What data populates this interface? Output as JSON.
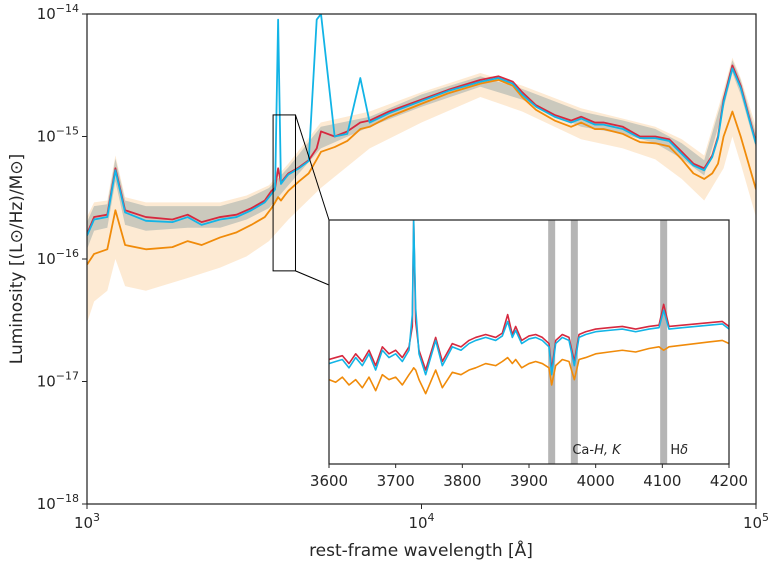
{
  "chart_data": {
    "type": "line",
    "xlabel": "rest-frame wavelength [Å]",
    "ylabel": "Luminosity [(L⊙/Hz)/M⊙]",
    "xscale": "log",
    "yscale": "log",
    "xlim": [
      1000,
      100000
    ],
    "ylim": [
      1e-18,
      1e-14
    ],
    "grid": false,
    "x_ticks": [
      {
        "value": 1000,
        "base": "10",
        "exp": "3"
      },
      {
        "value": 10000,
        "base": "10",
        "exp": "4"
      },
      {
        "value": 100000,
        "base": "10",
        "exp": "5"
      }
    ],
    "y_ticks": [
      {
        "value": 1e-18,
        "base": "10",
        "exp": "−18"
      },
      {
        "value": 1e-17,
        "base": "10",
        "exp": "−17"
      },
      {
        "value": 1e-16,
        "base": "10",
        "exp": "−16"
      },
      {
        "value": 1e-15,
        "base": "10",
        "exp": "−15"
      },
      {
        "value": 1e-14,
        "base": "10",
        "exp": "−14"
      }
    ],
    "colors": {
      "red": "#d6293f",
      "cyan": "#12b4e6",
      "orange": "#f08b0a",
      "gray_band": "#b9bdb5",
      "orange_band": "#fde5c8",
      "inset_bar": "#b5b5b5"
    },
    "series": [
      {
        "color": "red",
        "x": [
          1000,
          1050,
          1150,
          1216,
          1300,
          1500,
          1800,
          2000,
          2200,
          2500,
          2800,
          3100,
          3400,
          3560,
          3650,
          3727,
          3800,
          3900,
          4000,
          4300,
          4600,
          4861,
          5007,
          5500,
          6000,
          6563,
          7000,
          8000,
          10000,
          12000,
          15000,
          17000,
          18750,
          20000,
          22000,
          25000,
          28000,
          30000,
          33000,
          35000,
          40000,
          45000,
          50000,
          55000,
          60000,
          65000,
          70000,
          74000,
          77000,
          80000,
          85000,
          90000,
          95000,
          100000
        ],
        "y": [
          1.6e-16,
          2.2e-16,
          2.3e-16,
          5.5e-16,
          2.5e-16,
          2.2e-16,
          2.1e-16,
          2.3e-16,
          2e-16,
          2.2e-16,
          2.3e-16,
          2.6e-16,
          3e-16,
          3.6e-16,
          3.8e-16,
          5.5e-16,
          4.2e-16,
          4.6e-16,
          5e-16,
          5.6e-16,
          6.4e-16,
          8e-16,
          1.1e-15,
          1e-15,
          1.1e-15,
          1.3e-15,
          1.35e-15,
          1.6e-15,
          2e-15,
          2.4e-15,
          2.9e-15,
          3.1e-15,
          2.8e-15,
          2.3e-15,
          1.8e-15,
          1.5e-15,
          1.35e-15,
          1.45e-15,
          1.3e-15,
          1.3e-15,
          1.2e-15,
          1e-15,
          1e-15,
          9.5e-16,
          7.5e-16,
          6e-16,
          5.5e-16,
          7e-16,
          1e-15,
          2e-15,
          3.8e-15,
          2.6e-15,
          1.5e-15,
          9e-16
        ]
      },
      {
        "color": "cyan",
        "x": [
          1000,
          1050,
          1150,
          1216,
          1300,
          1500,
          1800,
          2000,
          2200,
          2500,
          2800,
          3100,
          3400,
          3560,
          3650,
          3727,
          3800,
          3900,
          4000,
          4300,
          4600,
          4861,
          5007,
          5500,
          6000,
          6563,
          7000,
          8000,
          10000,
          12000,
          15000,
          17000,
          18750,
          20000,
          22000,
          25000,
          28000,
          30000,
          33000,
          35000,
          40000,
          45000,
          50000,
          55000,
          60000,
          65000,
          70000,
          74000,
          77000,
          80000,
          85000,
          90000,
          95000,
          100000
        ],
        "y": [
          1.55e-16,
          2.1e-16,
          2.2e-16,
          5.3e-16,
          2.4e-16,
          2.05e-16,
          2e-16,
          2.2e-16,
          1.9e-16,
          2.1e-16,
          2.2e-16,
          2.5e-16,
          2.9e-16,
          3.4e-16,
          3.7e-16,
          9e-15,
          4.1e-16,
          4.5e-16,
          4.9e-16,
          5.5e-16,
          6.3e-16,
          9e-15,
          1e-14,
          1e-15,
          1.05e-15,
          3e-15,
          1.3e-15,
          1.55e-15,
          1.95e-15,
          2.35e-15,
          2.8e-15,
          3e-15,
          2.7e-15,
          2.2e-15,
          1.75e-15,
          1.45e-15,
          1.3e-15,
          1.4e-15,
          1.25e-15,
          1.25e-15,
          1.15e-15,
          9.7e-16,
          9.7e-16,
          9.2e-16,
          7.2e-16,
          5.8e-16,
          5.3e-16,
          6.8e-16,
          9.7e-16,
          1.9e-15,
          3.6e-15,
          2.5e-15,
          1.45e-15,
          8.7e-16
        ]
      },
      {
        "color": "orange",
        "x": [
          1000,
          1050,
          1150,
          1216,
          1300,
          1500,
          1800,
          2000,
          2200,
          2500,
          2800,
          3100,
          3400,
          3560,
          3650,
          3727,
          3800,
          3900,
          4000,
          4300,
          4600,
          4861,
          5007,
          5500,
          6000,
          6563,
          7000,
          8000,
          10000,
          12000,
          15000,
          17000,
          18750,
          20000,
          22000,
          25000,
          28000,
          30000,
          33000,
          35000,
          40000,
          45000,
          50000,
          55000,
          60000,
          65000,
          70000,
          74000,
          77000,
          80000,
          85000,
          90000,
          95000,
          100000
        ],
        "y": [
          9e-17,
          1.1e-16,
          1.2e-16,
          2.5e-16,
          1.3e-16,
          1.2e-16,
          1.25e-16,
          1.4e-16,
          1.3e-16,
          1.5e-16,
          1.65e-16,
          1.9e-16,
          2.2e-16,
          2.6e-16,
          2.9e-16,
          3.2e-16,
          3e-16,
          3.3e-16,
          3.6e-16,
          4.3e-16,
          5e-16,
          6.5e-16,
          7.5e-16,
          8.2e-16,
          9.2e-16,
          1.15e-15,
          1.2e-15,
          1.45e-15,
          1.85e-15,
          2.25e-15,
          2.7e-15,
          2.9e-15,
          2.6e-15,
          2.1e-15,
          1.65e-15,
          1.35e-15,
          1.2e-15,
          1.3e-15,
          1.15e-15,
          1.15e-15,
          1.05e-15,
          9e-16,
          8.8e-16,
          8.3e-16,
          6.5e-16,
          5e-16,
          4.5e-16,
          5e-16,
          6e-16,
          1e-15,
          1.6e-15,
          1e-15,
          6e-16,
          3.7e-16
        ]
      }
    ],
    "bands": [
      {
        "color": "orange_band",
        "x": [
          1000,
          1050,
          1150,
          1216,
          1300,
          1500,
          2000,
          2500,
          3000,
          3500,
          4000,
          5000,
          7000,
          10000,
          15000,
          20000,
          30000,
          40000,
          50000,
          60000,
          70000,
          80000,
          85000,
          90000,
          100000
        ],
        "low": [
          3e-17,
          4.5e-17,
          5.5e-17,
          1e-16,
          6e-17,
          5.5e-17,
          7e-17,
          8.5e-17,
          1.05e-16,
          1.4e-16,
          2.1e-16,
          3.8e-16,
          8e-16,
          1.3e-15,
          2.1e-15,
          1.6e-15,
          9.5e-16,
          8e-16,
          6.5e-16,
          4.5e-16,
          3e-16,
          5.5e-16,
          1e-15,
          6e-16,
          2.2e-16
        ],
        "high": [
          2.2e-16,
          2.9e-16,
          3e-16,
          7e-16,
          3.2e-16,
          2.9e-16,
          2.9e-16,
          2.9e-16,
          3.3e-16,
          4e-16,
          6e-16,
          1.3e-15,
          1.6e-15,
          2.3e-15,
          3.3e-15,
          2.6e-15,
          1.7e-15,
          1.4e-15,
          1.2e-15,
          9.5e-16,
          7e-16,
          2.4e-15,
          4.4e-15,
          3e-15,
          1.2e-15
        ]
      },
      {
        "color": "gray_band",
        "x": [
          1000,
          1050,
          1150,
          1216,
          1300,
          1500,
          2000,
          2500,
          3000,
          3500,
          4000,
          5000,
          7000,
          10000,
          15000,
          20000,
          30000,
          40000,
          50000,
          60000,
          70000,
          80000,
          85000,
          90000,
          100000
        ],
        "low": [
          1.2e-16,
          1.7e-16,
          1.8e-16,
          4.3e-16,
          1.9e-16,
          1.7e-16,
          1.8e-16,
          1.8e-16,
          2.1e-16,
          2.6e-16,
          4e-16,
          8e-16,
          1.2e-15,
          1.75e-15,
          2.55e-15,
          2e-15,
          1.2e-15,
          1.05e-15,
          8.8e-16,
          6.6e-16,
          4.8e-16,
          1.7e-15,
          3.3e-15,
          2.2e-15,
          8e-16
        ],
        "high": [
          2e-16,
          2.7e-16,
          2.8e-16,
          6.6e-16,
          3e-16,
          2.7e-16,
          2.7e-16,
          2.7e-16,
          3.1e-16,
          3.8e-16,
          5.6e-16,
          1.2e-15,
          1.45e-15,
          2.2e-15,
          3.1e-15,
          2.45e-15,
          1.6e-15,
          1.35e-15,
          1.15e-15,
          8.8e-16,
          6.4e-16,
          2.2e-15,
          4.2e-15,
          2.9e-15,
          1.05e-15
        ]
      }
    ],
    "zoom_box": {
      "xlim": [
        3600,
        4200
      ],
      "ylim": [
        8e-17,
        1.5e-15
      ]
    },
    "inset": {
      "xlim": [
        3600,
        4200
      ],
      "ylim": [
        5e-17,
        1.2e-15
      ],
      "yscale": "log",
      "x_ticks": [
        3600,
        3700,
        3800,
        3900,
        4000,
        4100,
        4200
      ],
      "x_tick_labels": [
        "3600",
        "3700",
        "3800",
        "3900",
        "4000",
        "4100",
        "4200"
      ],
      "bars": [
        3934,
        3968,
        4102
      ],
      "annotations": [
        {
          "x": 3965,
          "y": 5.7e-17,
          "prefix": "Ca-",
          "italic": "H, K"
        },
        {
          "x": 4112,
          "y": 5.7e-17,
          "prefix": "H",
          "italic": "δ"
        }
      ],
      "series": [
        {
          "color": "red",
          "x": [
            3600,
            3610,
            3620,
            3630,
            3640,
            3650,
            3660,
            3670,
            3680,
            3690,
            3700,
            3710,
            3720,
            3725,
            3727,
            3730,
            3735,
            3745,
            3760,
            3770,
            3785,
            3798,
            3810,
            3820,
            3835,
            3850,
            3860,
            3868,
            3875,
            3880,
            3889,
            3900,
            3910,
            3920,
            3930,
            3934,
            3940,
            3950,
            3960,
            3968,
            3975,
            3985,
            4000,
            4020,
            4040,
            4060,
            4080,
            4095,
            4102,
            4110,
            4130,
            4150,
            4170,
            4190,
            4200
          ],
          "y": [
            1.95e-16,
            2e-16,
            2.05e-16,
            1.85e-16,
            2.1e-16,
            1.9e-16,
            2.2e-16,
            1.8e-16,
            2.3e-16,
            2.1e-16,
            2.2e-16,
            2e-16,
            2.3e-16,
            3e-16,
            1.2e-15,
            3.2e-16,
            2.2e-16,
            1.7e-16,
            2.6e-16,
            1.9e-16,
            2.4e-16,
            2.3e-16,
            2.5e-16,
            2.6e-16,
            2.7e-16,
            2.6e-16,
            2.75e-16,
            3.5e-16,
            2.7e-16,
            3e-16,
            2.5e-16,
            2.65e-16,
            2.7e-16,
            2.6e-16,
            2.4e-16,
            1.7e-16,
            2.5e-16,
            2.7e-16,
            2.6e-16,
            1.9e-16,
            2.7e-16,
            2.8e-16,
            2.9e-16,
            2.95e-16,
            3e-16,
            2.9e-16,
            3e-16,
            3.05e-16,
            4e-16,
            3e-16,
            3.05e-16,
            3.1e-16,
            3.15e-16,
            3.2e-16,
            3e-16
          ]
        },
        {
          "color": "cyan",
          "x": [
            3600,
            3610,
            3620,
            3630,
            3640,
            3650,
            3660,
            3670,
            3680,
            3690,
            3700,
            3710,
            3720,
            3725,
            3727,
            3730,
            3735,
            3745,
            3760,
            3770,
            3785,
            3798,
            3810,
            3820,
            3835,
            3850,
            3860,
            3868,
            3875,
            3880,
            3889,
            3900,
            3910,
            3920,
            3930,
            3934,
            3940,
            3950,
            3960,
            3968,
            3975,
            3985,
            4000,
            4020,
            4040,
            4060,
            4080,
            4095,
            4102,
            4110,
            4130,
            4150,
            4170,
            4190,
            4200
          ],
          "y": [
            1.85e-16,
            1.9e-16,
            1.95e-16,
            1.75e-16,
            2e-16,
            1.8e-16,
            2.1e-16,
            1.7e-16,
            2.2e-16,
            2e-16,
            2.1e-16,
            1.9e-16,
            2.2e-16,
            3.5e-16,
            1.2e-15,
            3.8e-16,
            2.1e-16,
            1.6e-16,
            2.5e-16,
            1.8e-16,
            2.3e-16,
            2.2e-16,
            2.4e-16,
            2.5e-16,
            2.6e-16,
            2.5e-16,
            2.65e-16,
            3.2e-16,
            2.6e-16,
            2.85e-16,
            2.4e-16,
            2.55e-16,
            2.6e-16,
            2.5e-16,
            2.3e-16,
            1.6e-16,
            2.4e-16,
            2.6e-16,
            2.5e-16,
            1.8e-16,
            2.6e-16,
            2.7e-16,
            2.8e-16,
            2.85e-16,
            2.9e-16,
            2.8e-16,
            2.9e-16,
            2.95e-16,
            3.7e-16,
            2.9e-16,
            2.95e-16,
            3e-16,
            3.05e-16,
            3.1e-16,
            2.9e-16
          ]
        },
        {
          "color": "orange",
          "x": [
            3600,
            3610,
            3620,
            3630,
            3640,
            3650,
            3660,
            3670,
            3680,
            3690,
            3700,
            3710,
            3720,
            3725,
            3727,
            3730,
            3735,
            3745,
            3760,
            3770,
            3785,
            3798,
            3810,
            3820,
            3835,
            3850,
            3860,
            3868,
            3875,
            3880,
            3889,
            3900,
            3910,
            3920,
            3930,
            3934,
            3940,
            3950,
            3960,
            3968,
            3975,
            3985,
            4000,
            4020,
            4040,
            4060,
            4080,
            4095,
            4102,
            4110,
            4130,
            4150,
            4170,
            4190,
            4200
          ],
          "y": [
            1.5e-16,
            1.45e-16,
            1.55e-16,
            1.4e-16,
            1.5e-16,
            1.35e-16,
            1.55e-16,
            1.3e-16,
            1.6e-16,
            1.5e-16,
            1.55e-16,
            1.4e-16,
            1.6e-16,
            1.7e-16,
            1.75e-16,
            1.7e-16,
            1.5e-16,
            1.25e-16,
            1.7e-16,
            1.35e-16,
            1.65e-16,
            1.6e-16,
            1.7e-16,
            1.75e-16,
            1.85e-16,
            1.8e-16,
            1.9e-16,
            2e-16,
            1.85e-16,
            1.95e-16,
            1.75e-16,
            1.85e-16,
            1.9e-16,
            1.85e-16,
            1.75e-16,
            1.4e-16,
            1.8e-16,
            1.95e-16,
            1.9e-16,
            1.5e-16,
            1.95e-16,
            2e-16,
            2.1e-16,
            2.15e-16,
            2.2e-16,
            2.15e-16,
            2.25e-16,
            2.3e-16,
            2.2e-16,
            2.3e-16,
            2.35e-16,
            2.4e-16,
            2.45e-16,
            2.5e-16,
            2.4e-16
          ]
        }
      ]
    }
  }
}
